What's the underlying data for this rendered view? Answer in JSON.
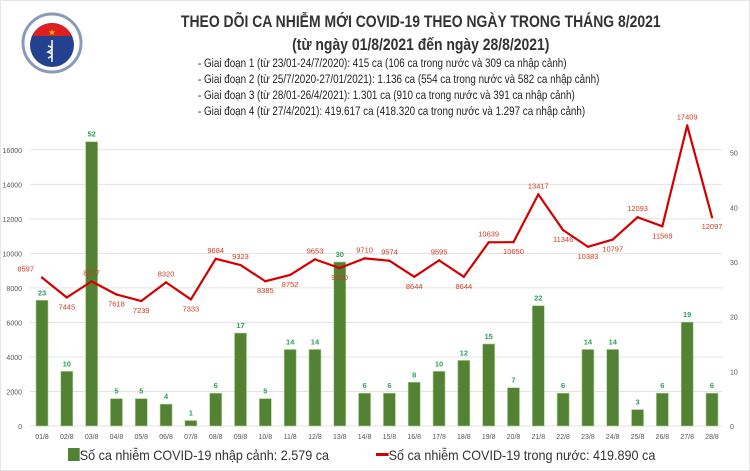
{
  "header": {
    "title": "THEO DÕI CA NHIỄM MỚI COVID-19 THEO NGÀY TRONG THÁNG 8/2021",
    "subtitle": "(từ ngày 01/8/2021 đến ngày 28/8/2021)",
    "logo_text": [
      "BỘ Y TẾ",
      "MINISTRY OF HEALTH"
    ],
    "notes": [
      "- Giai đoạn 1 (từ 23/01-24/7/2020): 415 ca (106 ca trong nước và 309 ca nhập cảnh)",
      "- Giai đoạn 2 (từ 25/7/2020-27/01/2021): 1.136 ca (554 ca trong nước và 582 ca nhập cảnh)",
      "- Giai đoạn 3 (từ 28/01-26/4/2021): 1.301 ca (910 ca trong nước và 391 ca nhập cảnh)",
      "- Giai đoạn 4 (từ 27/4/2021): 419.617 ca (418.320 ca trong nước và 1.297 ca nhập cảnh)"
    ]
  },
  "chart_data": {
    "type": "bar+line",
    "categories": [
      "01/8",
      "02/8",
      "03/8",
      "04/8",
      "05/8",
      "06/8",
      "07/8",
      "08/8",
      "09/8",
      "10/8",
      "11/8",
      "12/8",
      "13/8",
      "14/8",
      "15/8",
      "16/8",
      "17/8",
      "18/8",
      "19/8",
      "20/8",
      "21/8",
      "22/8",
      "23/8",
      "24/8",
      "25/8",
      "26/8",
      "27/8",
      "28/8"
    ],
    "series": [
      {
        "name": "Số ca nhiễm COVID-19 nhập cảnh: 2.579 ca",
        "type": "bar",
        "axis": "right",
        "color": "#548235",
        "label_color": "#2f9e5e",
        "values": [
          23,
          10,
          52,
          5,
          5,
          4,
          1,
          6,
          17,
          5,
          14,
          14,
          30,
          6,
          6,
          8,
          10,
          12,
          15,
          7,
          22,
          6,
          14,
          14,
          3,
          6,
          19,
          6
        ]
      },
      {
        "name": "Số ca nhiễm COVID-19 trong nước: 419.890 ca",
        "type": "line",
        "axis": "left",
        "color": "#d40000",
        "label_color": "#d23a1e",
        "values": [
          8597,
          7445,
          8377,
          7618,
          7239,
          8320,
          7333,
          9684,
          9323,
          8385,
          8752,
          9653,
          9150,
          9710,
          9574,
          8644,
          9595,
          8644,
          10639,
          10650,
          13417,
          11346,
          10383,
          10797,
          12093,
          11569,
          17409,
          12097
        ]
      }
    ],
    "left_axis": {
      "ylim": [
        0,
        19000
      ],
      "ticks": [
        0,
        2000,
        4000,
        6000,
        8000,
        10000,
        12000,
        14000,
        16000
      ]
    },
    "right_axis": {
      "ylim": [
        0,
        60
      ],
      "ticks": [
        0,
        10,
        20,
        30,
        40,
        50
      ]
    },
    "grid": true,
    "legend": "bottom"
  }
}
